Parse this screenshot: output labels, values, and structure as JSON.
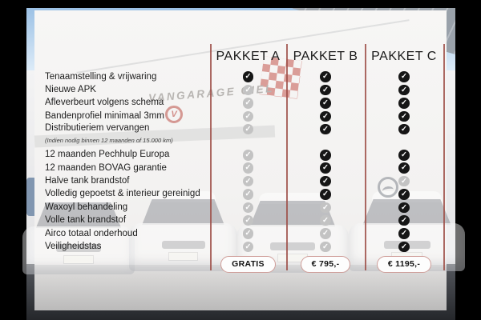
{
  "panel": {
    "columns": [
      {
        "name": "PAKKET A",
        "price": "GRATIS"
      },
      {
        "name": "PAKKET B",
        "price": "€ 795,-"
      },
      {
        "name": "PAKKET C",
        "price": "€ 1195,-"
      }
    ],
    "features": [
      {
        "label": "Tenaamstelling & vrijwaring",
        "checks": [
          "included",
          "included",
          "included"
        ]
      },
      {
        "label": "Nieuwe APK",
        "checks": [
          "excluded",
          "included",
          "included"
        ]
      },
      {
        "label": "Afleverbeurt volgens schema",
        "checks": [
          "excluded",
          "included",
          "included"
        ]
      },
      {
        "label": "Bandenprofiel minimaal 3mm",
        "checks": [
          "excluded",
          "included",
          "included"
        ]
      },
      {
        "label": "Distributieriem vervangen",
        "note": "(Indien nodig binnen 12 maanden of 15.000 km)",
        "checks": [
          "excluded",
          "included",
          "included"
        ],
        "group_end": true
      },
      {
        "label": "12 maanden Pechhulp Europa",
        "checks": [
          "excluded",
          "included",
          "included"
        ]
      },
      {
        "label": "12 maanden BOVAG garantie",
        "checks": [
          "excluded",
          "included",
          "included"
        ]
      },
      {
        "label": "Halve tank brandstof",
        "checks": [
          "excluded",
          "included",
          "excluded"
        ]
      },
      {
        "label": "Volledig gepoetst & interieur gereinigd",
        "checks": [
          "excluded",
          "included",
          "included"
        ]
      },
      {
        "label": "Waxoyl behandeling",
        "checks": [
          "excluded",
          "excluded",
          "included"
        ]
      },
      {
        "label": "Volle tank brandstof",
        "checks": [
          "excluded",
          "excluded",
          "included"
        ]
      },
      {
        "label": "Airco totaal onderhoud",
        "checks": [
          "excluded",
          "excluded",
          "included"
        ]
      },
      {
        "label": "Veiligheidstas",
        "checks": [
          "excluded",
          "excluded",
          "included"
        ]
      }
    ]
  },
  "background": {
    "sign_text": "VANGARAGE GIEL",
    "logo_letter": "V"
  },
  "icons": {
    "check_glyph": "✓"
  },
  "colors": {
    "accent_line": "#9e4f48",
    "check_included": "#161616",
    "check_excluded": "#c3c3c3",
    "button_border": "#cf9e99"
  }
}
